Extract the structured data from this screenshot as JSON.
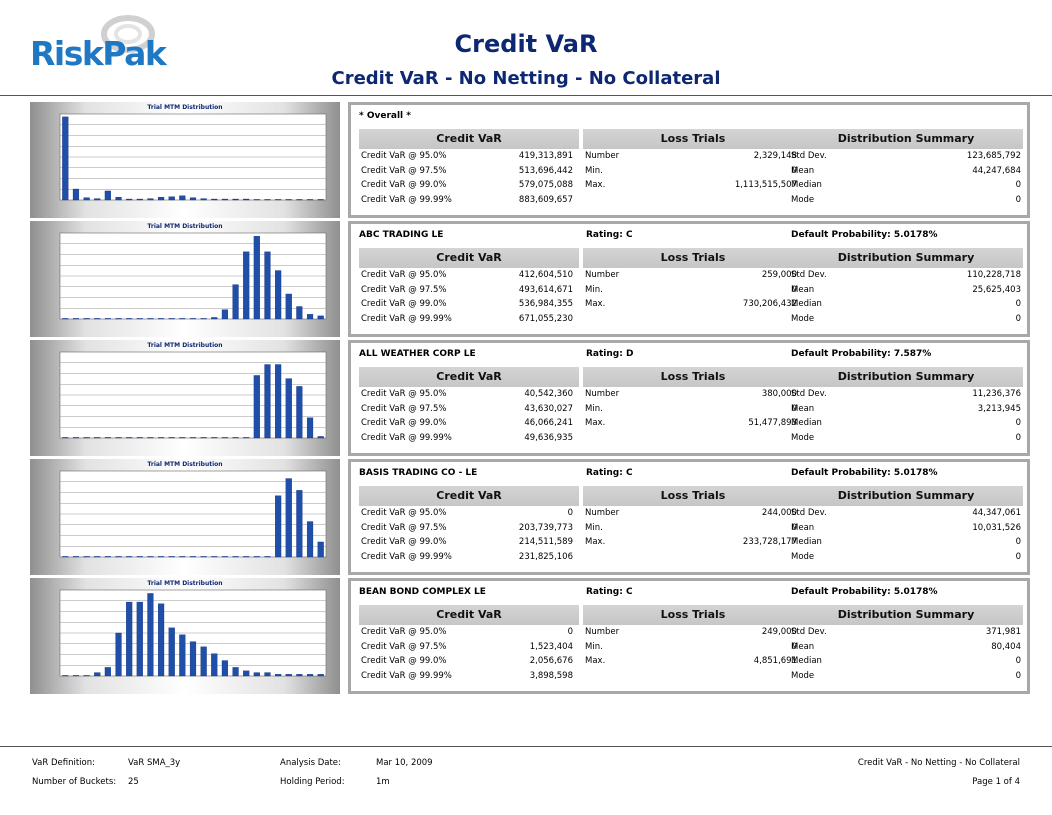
{
  "header": {
    "logo_text": "RiskPak",
    "title": "Credit VaR",
    "subtitle": "Credit VaR - No Netting - No Collateral"
  },
  "column_headers": {
    "credit_var": "Credit VaR",
    "loss_trials": "Loss Trials",
    "distribution_summary": "Distribution Summary"
  },
  "row_labels": {
    "var95": "Credit VaR @ 95.0%",
    "var975": "Credit VaR @ 97.5%",
    "var99": "Credit VaR @ 99.0%",
    "var9999": "Credit VaR @ 99.99%",
    "number": "Number",
    "min": "Min.",
    "max": "Max.",
    "std": "Std Dev.",
    "mean": "Mean",
    "median": "Median",
    "mode": "Mode"
  },
  "sections": [
    {
      "name": "* Overall *",
      "rating": "",
      "default_probability": "",
      "credit_var": [
        "419,313,891",
        "513,696,442",
        "579,075,088",
        "883,609,657"
      ],
      "loss_trials": [
        "2,329,148",
        "0",
        "1,113,515,507"
      ],
      "distribution": [
        "123,685,792",
        "44,247,684",
        "0",
        "0"
      ]
    },
    {
      "name": "ABC TRADING LE",
      "rating": "Rating: C",
      "default_probability": "Default Probability: 5.0178%",
      "credit_var": [
        "412,604,510",
        "493,614,671",
        "536,984,355",
        "671,055,230"
      ],
      "loss_trials": [
        "259,000",
        "0",
        "730,206,432"
      ],
      "distribution": [
        "110,228,718",
        "25,625,403",
        "0",
        "0"
      ]
    },
    {
      "name": "ALL WEATHER CORP LE",
      "rating": "Rating: D",
      "default_probability": "Default Probability: 7.587%",
      "credit_var": [
        "40,542,360",
        "43,630,027",
        "46,066,241",
        "49,636,935"
      ],
      "loss_trials": [
        "380,000",
        "0",
        "51,477,893"
      ],
      "distribution": [
        "11,236,376",
        "3,213,945",
        "0",
        "0"
      ]
    },
    {
      "name": "BASIS TRADING CO - LE",
      "rating": "Rating: C",
      "default_probability": "Default Probability: 5.0178%",
      "credit_var": [
        "0",
        "203,739,773",
        "214,511,589",
        "231,825,106"
      ],
      "loss_trials": [
        "244,000",
        "0",
        "233,728,177"
      ],
      "distribution": [
        "44,347,061",
        "10,031,526",
        "0",
        "0"
      ]
    },
    {
      "name": "BEAN BOND COMPLEX LE",
      "rating": "Rating: C",
      "default_probability": "Default Probability: 5.0178%",
      "credit_var": [
        "0",
        "1,523,404",
        "2,056,676",
        "3,898,598"
      ],
      "loss_trials": [
        "249,000",
        "0",
        "4,851,691"
      ],
      "distribution": [
        "371,981",
        "80,404",
        "0",
        "0"
      ]
    }
  ],
  "chart_data": [
    {
      "type": "bar",
      "title": "Trial MTM Distribution",
      "bar_color": "#1f4fa8",
      "values": [
        1740,
        230,
        50,
        30,
        190,
        60,
        20,
        10,
        30,
        60,
        70,
        90,
        50,
        30,
        20,
        10,
        10,
        10,
        0,
        0,
        0,
        0,
        0,
        0,
        0
      ],
      "ylim": [
        0,
        1800
      ]
    },
    {
      "type": "bar",
      "title": "Trial MTM Distribution",
      "bar_color": "#1f4fa8",
      "values": [
        0,
        0,
        0,
        0,
        0,
        0,
        0,
        0,
        0,
        0,
        0,
        0,
        0,
        0,
        1,
        6,
        22,
        43,
        53,
        43,
        31,
        16,
        8,
        3,
        2
      ],
      "ylim": [
        0,
        55
      ]
    },
    {
      "type": "bar",
      "title": "Trial MTM Distribution",
      "bar_color": "#1f4fa8",
      "values": [
        0,
        0,
        0,
        0,
        0,
        0,
        0,
        0,
        0,
        0,
        0,
        0,
        0,
        0,
        0,
        0,
        0,
        0,
        40,
        47,
        47,
        38,
        33,
        13,
        1
      ],
      "ylim": [
        0,
        55
      ]
    },
    {
      "type": "bar",
      "title": "Trial MTM Distribution",
      "bar_color": "#1f4fa8",
      "values": [
        0,
        0,
        0,
        0,
        0,
        0,
        0,
        0,
        0,
        0,
        0,
        0,
        0,
        0,
        0,
        0,
        0,
        0,
        0,
        0,
        57,
        73,
        62,
        33,
        14
      ],
      "ylim": [
        0,
        80
      ]
    },
    {
      "type": "bar",
      "title": "Trial MTM Distribution",
      "bar_color": "#1f4fa8",
      "values": [
        0,
        0,
        0,
        2,
        5,
        25,
        43,
        43,
        48,
        42,
        28,
        24,
        20,
        17,
        13,
        9,
        5,
        3,
        2,
        2,
        1,
        1,
        1,
        1,
        1
      ],
      "ylim": [
        0,
        50
      ]
    }
  ],
  "footer": {
    "var_def_label": "VaR Definition:",
    "var_def_value": "VaR SMA_3y",
    "buckets_label": "Number of Buckets:",
    "buckets_value": "25",
    "analysis_date_label": "Analysis Date:",
    "analysis_date_value": "Mar 10, 2009",
    "holding_label": "Holding Period:",
    "holding_value": "1m",
    "report_name": "Credit VaR - No Netting - No Collateral",
    "page": "Page 1 of 4"
  }
}
